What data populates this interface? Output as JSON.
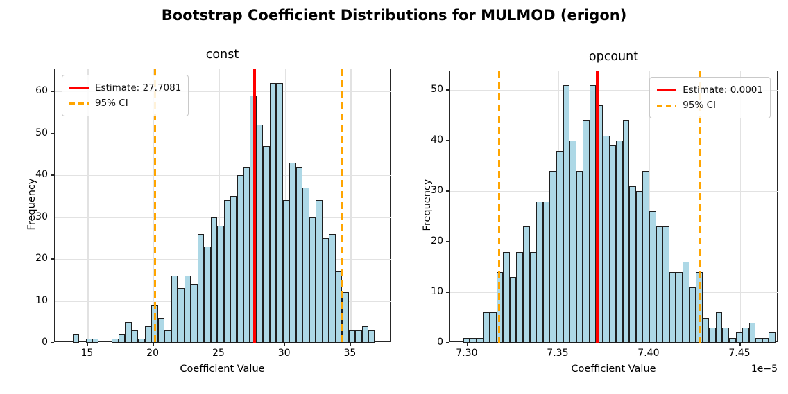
{
  "figure": {
    "title": "Bootstrap Coefficient Distributions for MULMOD (erigon)",
    "background": "#ffffff"
  },
  "colors": {
    "bar_fill": "#ADD8E6",
    "bar_edge": "#1f1f1f",
    "estimate_line": "#ff0000",
    "ci_line": "#FFA500",
    "grid": "#e2e2e2",
    "spine": "#262626"
  },
  "chart_data": [
    {
      "type": "bar",
      "name": "const",
      "title": "const",
      "xlabel": "Coefficient Value",
      "ylabel": "Frequency",
      "xlim": [
        12.5,
        38.09
      ],
      "ylim": [
        0,
        65.3
      ],
      "xtick_values": [
        15,
        20,
        25,
        30,
        35
      ],
      "xtick_labels": [
        "15",
        "20",
        "25",
        "30",
        "35"
      ],
      "ytick_values": [
        0,
        10,
        20,
        30,
        40,
        50,
        60
      ],
      "ytick_labels": [
        "0",
        "10",
        "20",
        "30",
        "40",
        "50",
        "60"
      ],
      "grid": true,
      "bin_start": 13.85,
      "bin_width": 0.5,
      "frequencies": [
        2,
        0,
        1,
        1,
        0,
        0,
        1,
        2,
        5,
        3,
        1,
        4,
        9,
        6,
        3,
        16,
        13,
        16,
        14,
        26,
        23,
        30,
        28,
        34,
        35,
        40,
        42,
        59,
        52,
        47,
        62,
        62,
        34,
        43,
        42,
        37,
        30,
        34,
        25,
        26,
        17,
        12,
        3,
        3,
        4,
        3
      ],
      "estimate": {
        "value": 27.7081,
        "label": "Estimate: 27.7081"
      },
      "ci": {
        "lower": 20.12,
        "upper": 34.37,
        "label": "95% CI"
      },
      "legend_position": "upper-left",
      "offset_text": ""
    },
    {
      "type": "bar",
      "name": "opcount",
      "title": "opcount",
      "xlabel": "Coefficient Value",
      "ylabel": "Frequency",
      "xlim": [
        7.2905,
        7.471
      ],
      "ylim": [
        0,
        53.7
      ],
      "xtick_values": [
        7.3,
        7.35,
        7.4,
        7.45
      ],
      "xtick_labels": [
        "7.30",
        "7.35",
        "7.40",
        "7.45"
      ],
      "ytick_values": [
        0,
        10,
        20,
        30,
        40,
        50
      ],
      "ytick_labels": [
        "0",
        "10",
        "20",
        "30",
        "40",
        "50"
      ],
      "grid": true,
      "bin_start": 7.2977,
      "bin_width": 0.003655,
      "frequencies": [
        1,
        1,
        1,
        6,
        6,
        14,
        18,
        13,
        18,
        23,
        18,
        28,
        28,
        34,
        38,
        51,
        40,
        34,
        44,
        51,
        47,
        41,
        39,
        40,
        44,
        31,
        30,
        34,
        26,
        23,
        23,
        14,
        14,
        16,
        11,
        14,
        5,
        3,
        6,
        3,
        1,
        2,
        3,
        4,
        1,
        1,
        2
      ],
      "estimate": {
        "value": 7.3714,
        "label": "Estimate: 0.0001"
      },
      "ci": {
        "lower": 7.3172,
        "upper": 7.4279,
        "label": "95% CI"
      },
      "legend_position": "upper-right",
      "offset_text": "1e−5"
    }
  ]
}
